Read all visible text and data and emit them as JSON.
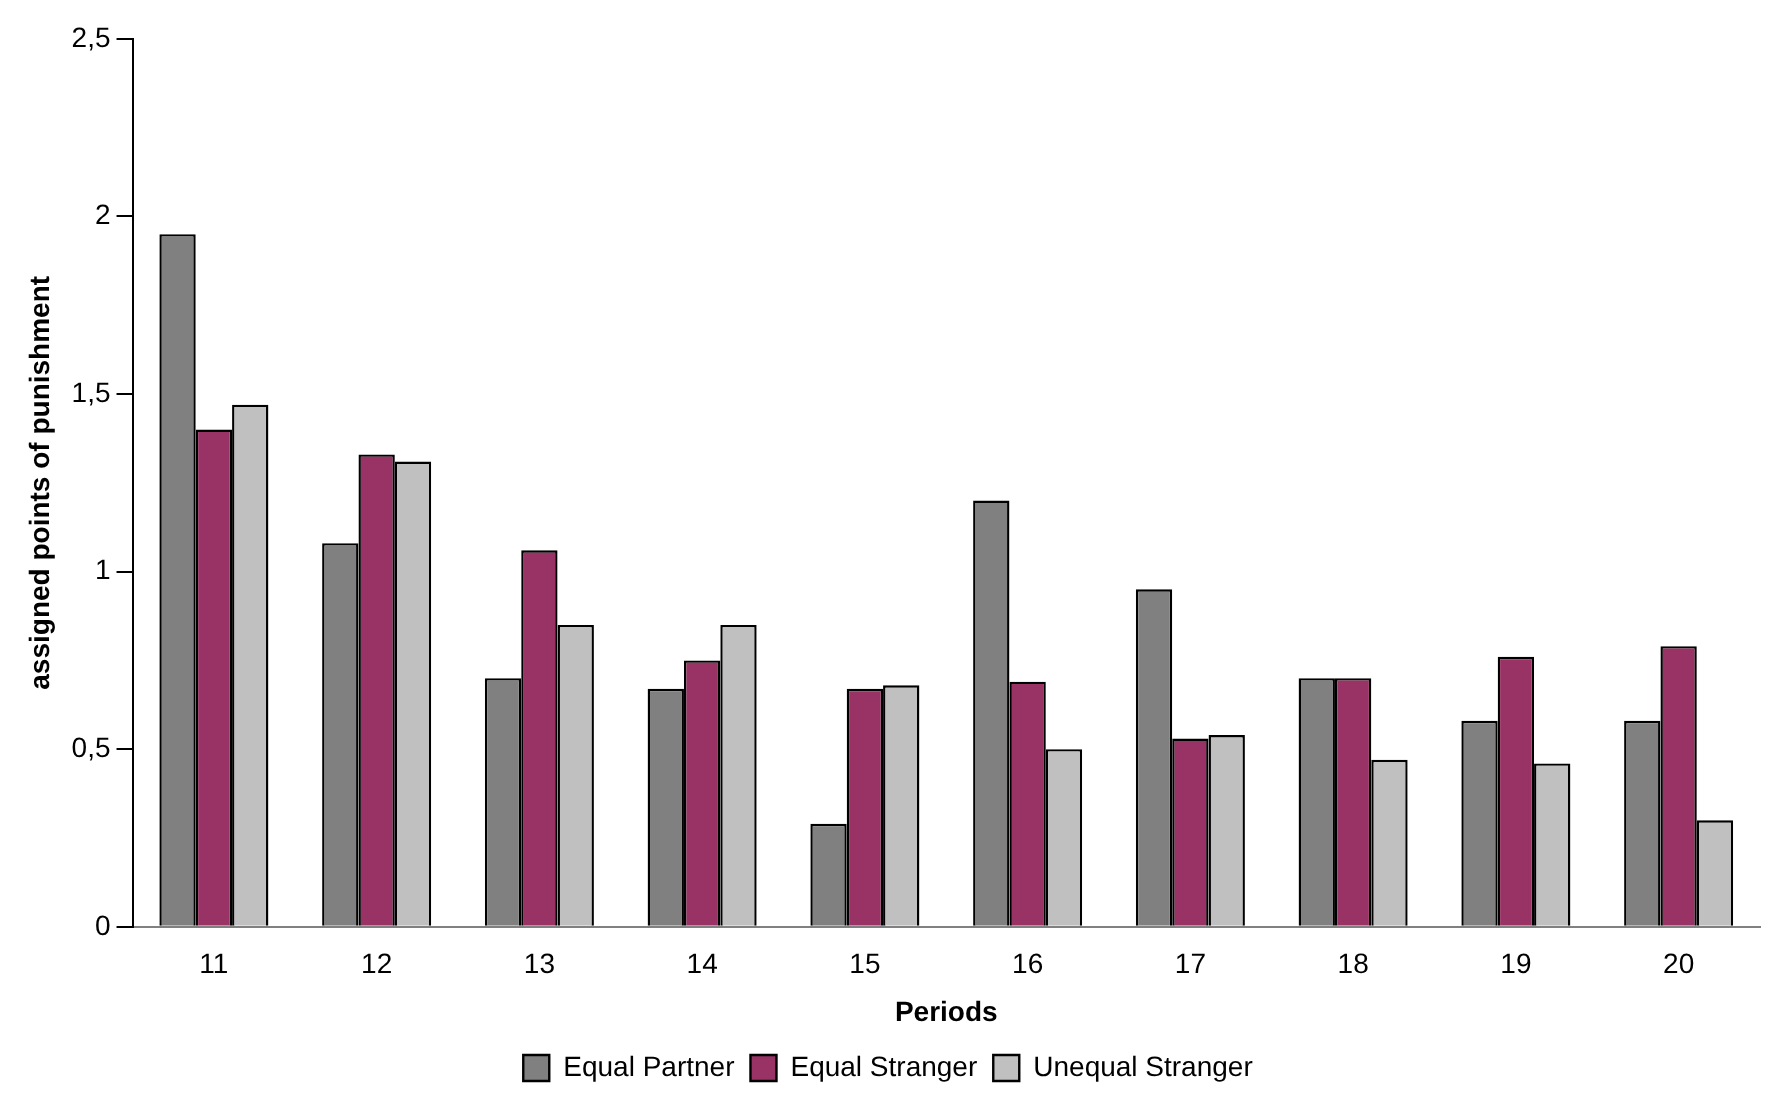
{
  "chart_data": {
    "type": "bar",
    "xlabel": "Periods",
    "ylabel": "assigned points of punishment",
    "categories": [
      "11",
      "12",
      "13",
      "14",
      "15",
      "16",
      "17",
      "18",
      "19",
      "20"
    ],
    "series": [
      {
        "name": "Equal Partner",
        "color": "#808080",
        "values": [
          1.95,
          1.08,
          0.7,
          0.67,
          0.29,
          1.2,
          0.95,
          0.7,
          0.58,
          0.58
        ]
      },
      {
        "name": "Equal Stranger",
        "color": "#993366",
        "values": [
          1.4,
          1.33,
          1.06,
          0.75,
          0.67,
          0.69,
          0.53,
          0.7,
          0.76,
          0.79
        ]
      },
      {
        "name": "Unequal Stranger",
        "color": "#c0c0c0",
        "values": [
          1.47,
          1.31,
          0.85,
          0.85,
          0.68,
          0.5,
          0.54,
          0.47,
          0.46,
          0.3
        ]
      }
    ],
    "ylim": [
      0,
      2.5
    ],
    "yticks": [
      0,
      {
        "value": 0.5,
        "label": "0,5"
      },
      1,
      {
        "value": 1.5,
        "label": "1,5"
      },
      2,
      {
        "value": 2.5,
        "label": "2,5"
      }
    ],
    "grid": false,
    "legend": "bottom"
  }
}
